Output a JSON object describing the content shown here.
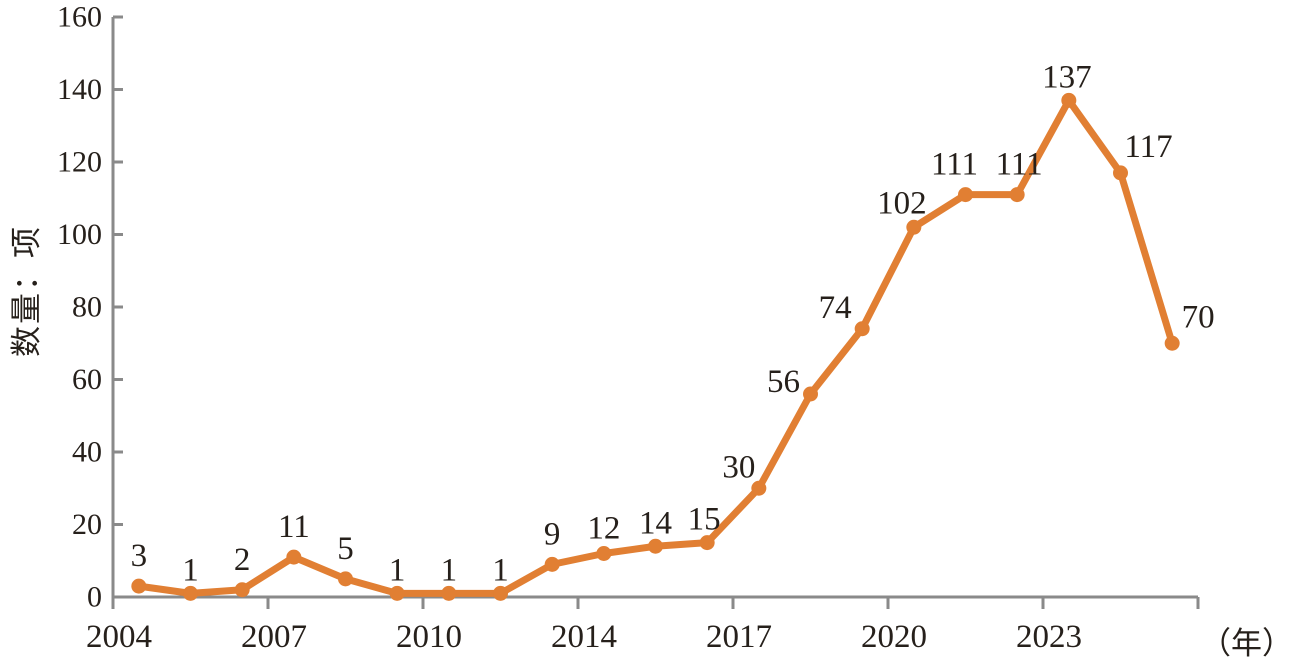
{
  "chart_data": {
    "type": "line",
    "title": "",
    "ylabel": "数量：项",
    "x_axis_unit_label": "（年）",
    "values": [
      3,
      1,
      2,
      11,
      5,
      1,
      1,
      1,
      9,
      12,
      14,
      15,
      30,
      56,
      74,
      102,
      111,
      111,
      137,
      117,
      70
    ],
    "point_labels": [
      "3",
      "1",
      "2",
      "11",
      "5",
      "1",
      "1",
      "1",
      "9",
      "12",
      "14",
      "15",
      "30",
      "56",
      "74",
      "102",
      "111",
      "111",
      "137",
      "117",
      "70"
    ],
    "x_tick_labels": [
      "2004",
      "2007",
      "2010",
      "2014",
      "2017",
      "2020",
      "2023"
    ],
    "x_tick_interval_categories": 3,
    "y_tick_labels": [
      "0",
      "20",
      "40",
      "60",
      "80",
      "100",
      "120",
      "140",
      "160"
    ],
    "ylim": [
      0,
      160
    ],
    "y_tick_step": 20,
    "grid": false,
    "legend": "none",
    "marker": "circle",
    "line_color": "#e17f33",
    "marker_color": "#e17f33",
    "text_color": "#26201b",
    "axis_color": "#8a8a8a"
  }
}
